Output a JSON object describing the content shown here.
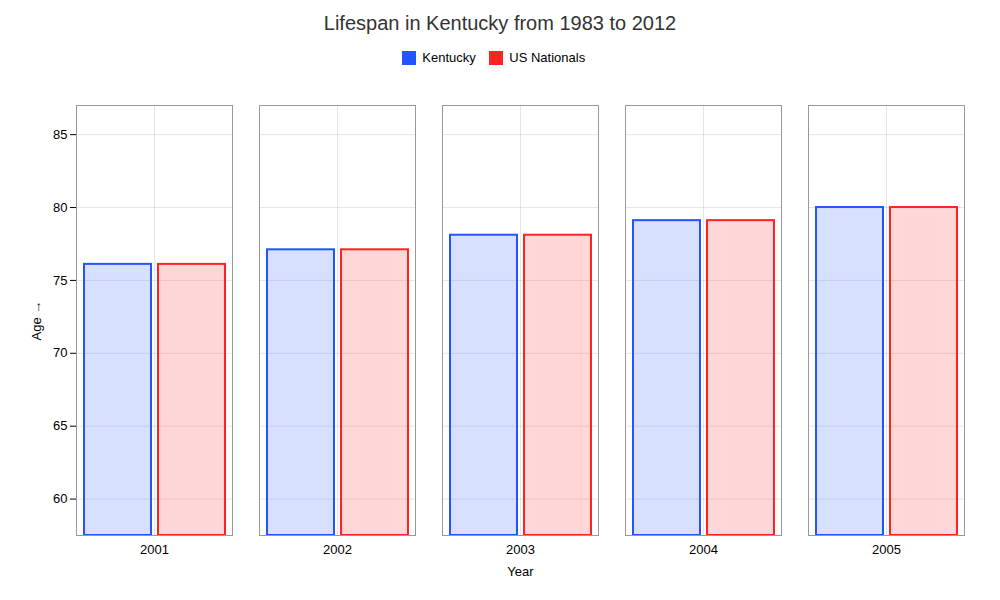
{
  "chart_data": {
    "type": "bar",
    "title": "Lifespan in Kentucky from 1983 to 2012",
    "xlabel": "Year",
    "ylabel": "Age",
    "categories": [
      "2001",
      "2002",
      "2003",
      "2004",
      "2005"
    ],
    "series": [
      {
        "name": "Kentucky",
        "color": "#2255ff",
        "values": [
          76.1,
          77.1,
          78.1,
          79.1,
          80.0
        ]
      },
      {
        "name": "US Nationals",
        "color": "#ff2222",
        "values": [
          76.1,
          77.1,
          78.1,
          79.1,
          80.0
        ]
      }
    ],
    "ylim": [
      57.5,
      87
    ],
    "yticks": [
      60,
      65,
      70,
      75,
      80,
      85
    ],
    "grid": true,
    "legend": "top"
  }
}
